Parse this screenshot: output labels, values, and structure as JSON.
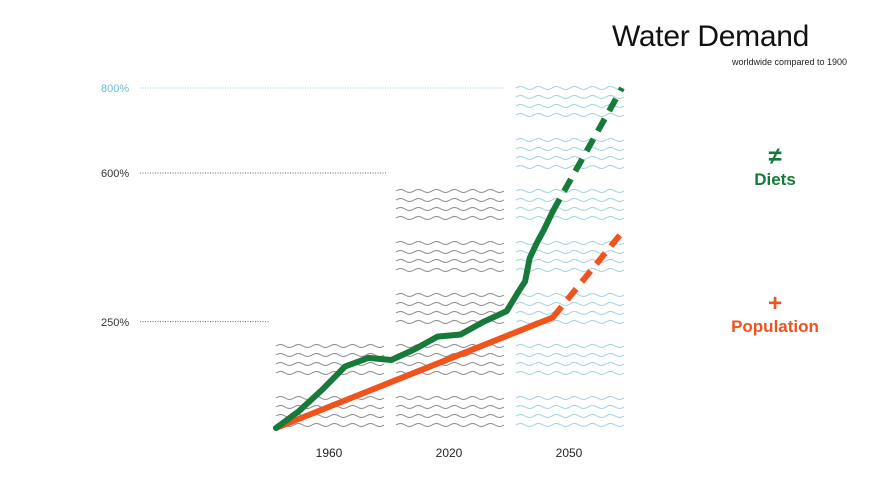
{
  "title": "Water Demand",
  "subtitle": "worldwide compared to 1900",
  "annotations": [
    {
      "symbol": "≠",
      "label": "Diets",
      "color": "#157a3a"
    },
    {
      "symbol": "+",
      "label": "Population",
      "color": "#f0531c"
    }
  ],
  "colors": {
    "diets": "#157a3a",
    "population": "#f0531c",
    "wave_gray": "#888888",
    "wave_blue": "#9fd0e0",
    "tick_gray": "#333333",
    "tick_blue": "#6bbcdc"
  },
  "chart_data": {
    "type": "line",
    "title": "Water Demand",
    "subtitle": "worldwide compared to 1900",
    "y_ticks": [
      {
        "label": "250%",
        "value": 250,
        "projected": false
      },
      {
        "label": "600%",
        "value": 600,
        "projected": false
      },
      {
        "label": "800%",
        "value": 800,
        "projected": true
      }
    ],
    "x_categories": [
      "1960",
      "2020",
      "2050"
    ],
    "ylim": [
      0,
      800
    ],
    "series": [
      {
        "name": "Diets",
        "color": "#157a3a",
        "historical": [
          [
            1900,
            0
          ],
          [
            1910,
            40
          ],
          [
            1920,
            90
          ],
          [
            1930,
            145
          ],
          [
            1940,
            165
          ],
          [
            1950,
            160
          ],
          [
            1960,
            185
          ],
          [
            1970,
            215
          ],
          [
            1980,
            220
          ],
          [
            1990,
            250
          ],
          [
            2000,
            275
          ],
          [
            2005,
            320
          ],
          [
            2008,
            345
          ],
          [
            2010,
            400
          ],
          [
            2013,
            435
          ],
          [
            2016,
            465
          ],
          [
            2020,
            510
          ]
        ],
        "projected": [
          [
            2020,
            510
          ],
          [
            2050,
            800
          ]
        ]
      },
      {
        "name": "Population",
        "color": "#f0531c",
        "historical": [
          [
            1900,
            0
          ],
          [
            2020,
            260
          ]
        ],
        "projected": [
          [
            2020,
            260
          ],
          [
            2050,
            460
          ]
        ]
      }
    ]
  }
}
